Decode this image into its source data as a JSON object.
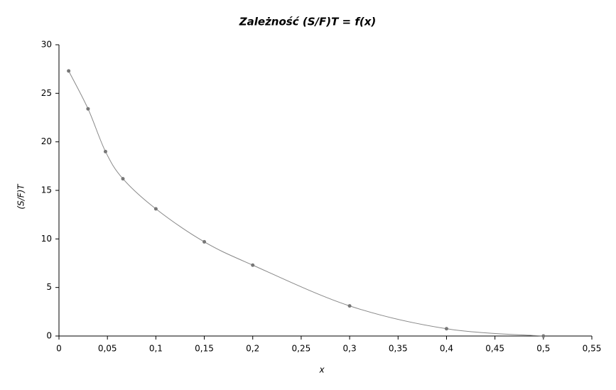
{
  "chart_data": {
    "type": "scatter",
    "title": "Zależność (S/F)T = f(x)",
    "x_label": "x",
    "y_label": "(S/F)T",
    "series": [
      {
        "color": "#777777",
        "x": [
          0.01,
          0.03,
          0.048,
          0.066,
          0.1,
          0.15,
          0.2,
          0.3,
          0.4,
          0.5
        ],
        "values": [
          27.3,
          23.4,
          19.0,
          16.2,
          13.1,
          9.7,
          7.3,
          3.1,
          0.75,
          0
        ]
      }
    ],
    "xlim": [
      0,
      0.55
    ],
    "xticks": [
      0,
      {
        "value": 0.05,
        "label": "0,05"
      },
      {
        "value": 0.1,
        "label": "0,1"
      },
      {
        "value": 0.15,
        "label": "0,15"
      },
      {
        "value": 0.2,
        "label": "0,2"
      },
      {
        "value": 0.25,
        "label": "0,25"
      },
      {
        "value": 0.3,
        "label": "0,3"
      },
      {
        "value": 0.35,
        "label": "0,35"
      },
      {
        "value": 0.4,
        "label": "0,4"
      },
      {
        "value": 0.45,
        "label": "0,45"
      },
      {
        "value": 0.5,
        "label": "0,5"
      },
      {
        "value": 0.55,
        "label": "0,55"
      }
    ],
    "ylim": [
      0,
      30
    ],
    "yticks": [
      0,
      5,
      10,
      15,
      20,
      25,
      30
    ]
  }
}
